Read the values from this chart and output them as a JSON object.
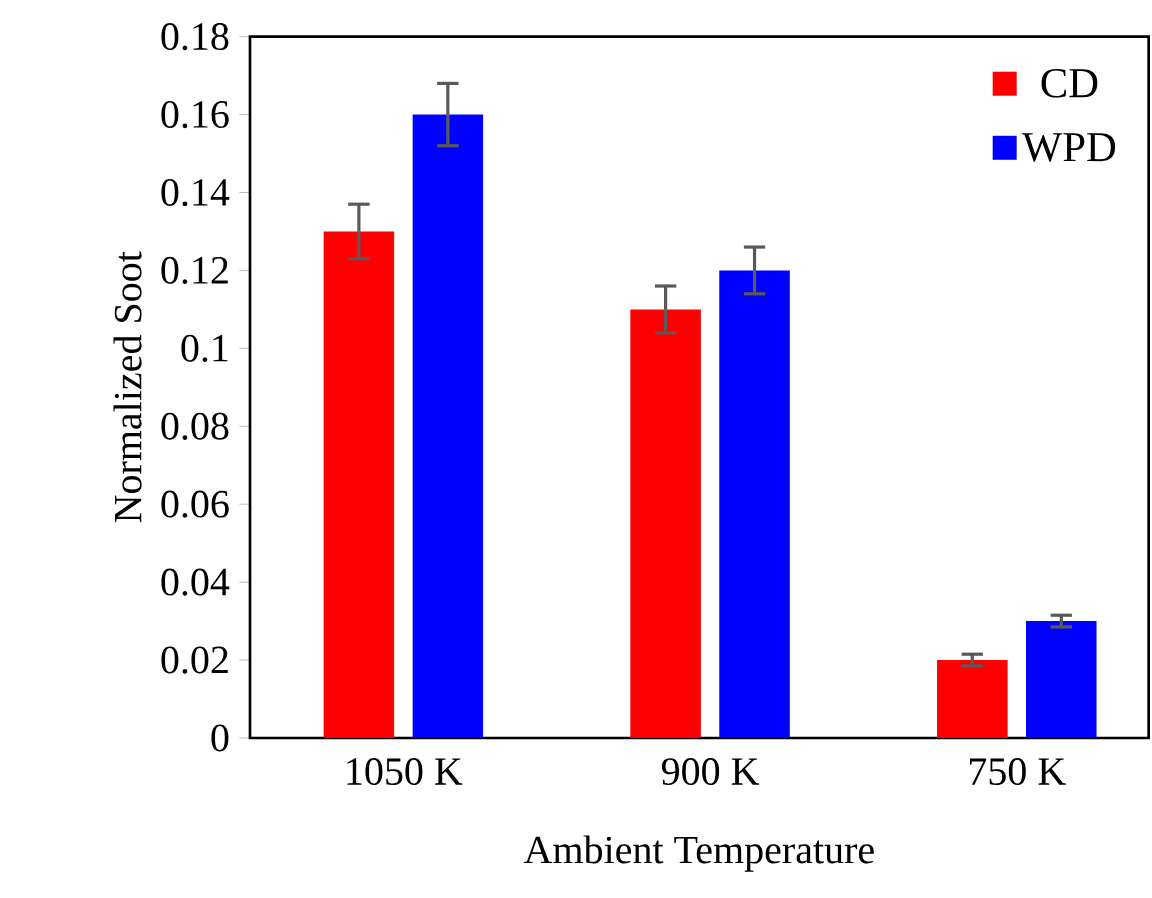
{
  "chart_data": {
    "type": "bar",
    "xlabel": "Ambient Temperature",
    "ylabel": "Normalized Soot",
    "categories": [
      "1050 K",
      "900 K",
      "750 K"
    ],
    "series": [
      {
        "name": "CD",
        "color": "#ff0000",
        "values": [
          0.13,
          0.11,
          0.02
        ],
        "errors": [
          0.007,
          0.006,
          0.0015
        ]
      },
      {
        "name": "WPD",
        "color": "#0000ff",
        "values": [
          0.16,
          0.12,
          0.03
        ],
        "errors": [
          0.008,
          0.006,
          0.0015
        ]
      }
    ],
    "ylim": [
      0,
      0.18
    ],
    "yticks": [
      0,
      {
        "value": 0.02,
        "label": "0.02"
      },
      {
        "value": 0.04,
        "label": "0.04"
      },
      {
        "value": 0.06,
        "label": "0.06"
      },
      {
        "value": 0.08,
        "label": "0.08"
      },
      {
        "value": 0.1,
        "label": "0.1"
      },
      {
        "value": 0.12,
        "label": "0.12"
      },
      {
        "value": 0.14,
        "label": "0.14"
      },
      {
        "value": 0.16,
        "label": "0.16"
      },
      {
        "value": 0.18,
        "label": "0.18"
      }
    ],
    "grid": false,
    "legend": "top right"
  }
}
